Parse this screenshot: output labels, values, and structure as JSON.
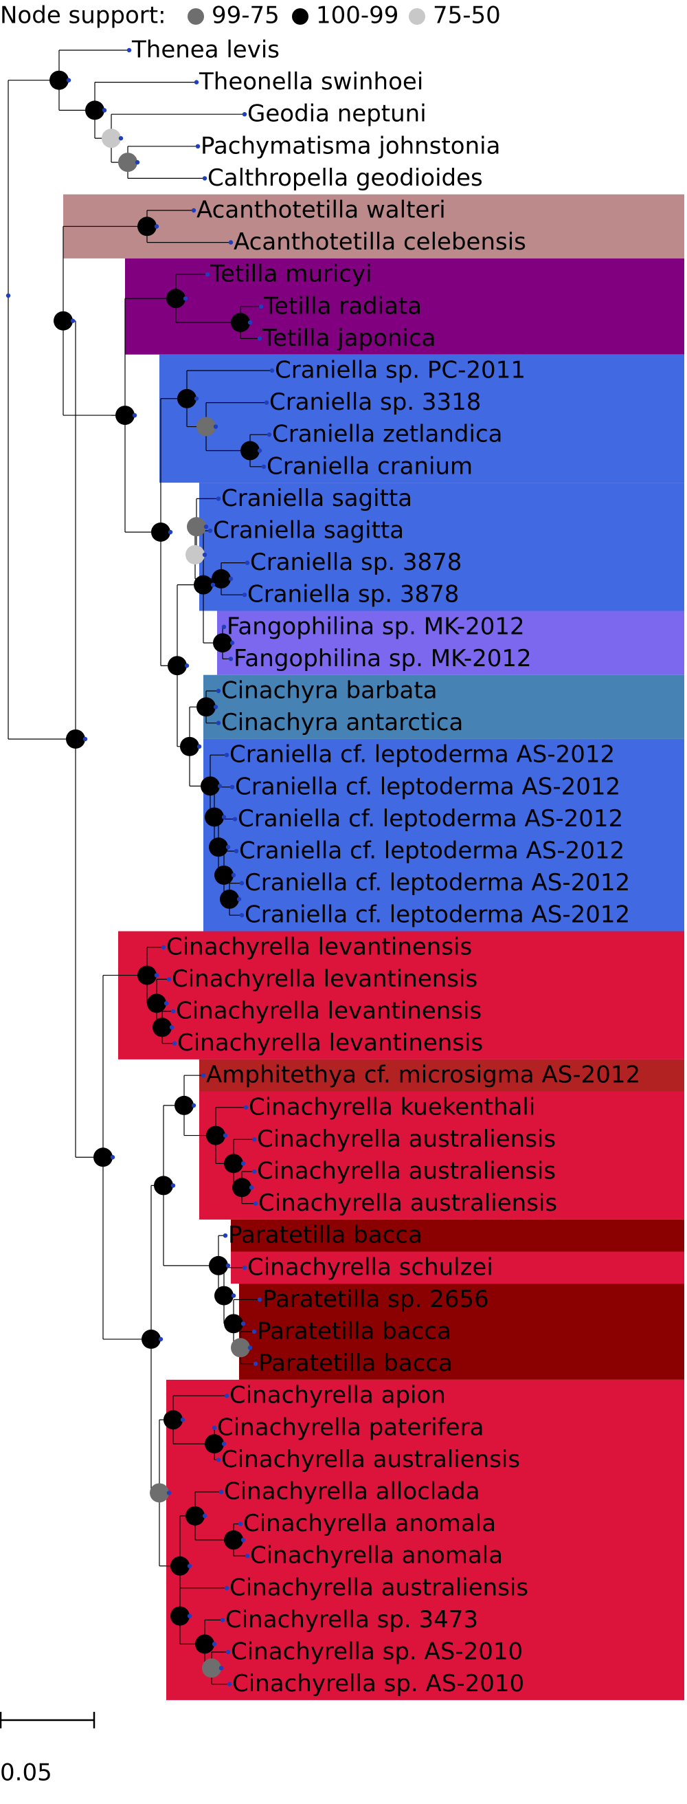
{
  "legend": {
    "title": "Node support:",
    "items": [
      {
        "label": "99-75",
        "color": "#6e6e6e"
      },
      {
        "label": "100-99",
        "color": "#000000"
      },
      {
        "label": "75-50",
        "color": "#c8c8c8"
      }
    ]
  },
  "scale_bar": {
    "label": "0.05"
  },
  "support_colors": {
    "high": "#000000",
    "mid": "#6e6e6e",
    "low": "#c8c8c8"
  },
  "clade_colors": {
    "acanthotetilla": "#bc8a8a",
    "tetilla": "#800080",
    "craniella": "#4169e1",
    "fangophilina": "#7b68ee",
    "cinachyra": "#4682b4",
    "cinachyrella": "#dc143c",
    "amphitethya": "#b22222",
    "paratetilla": "#8b0000"
  },
  "taxa": [
    "Thenea levis",
    "Theonella swinhoei",
    "Geodia neptuni",
    "Pachymatisma johnstonia",
    "Calthropella geodioides",
    "Acanthotetilla walteri",
    "Acanthotetilla celebensis",
    "Tetilla muricyi",
    "Tetilla radiata",
    "Tetilla japonica",
    "Craniella sp. PC-2011",
    "Craniella sp. 3318",
    "Craniella zetlandica",
    "Craniella cranium",
    "Craniella sagitta",
    "Craniella sagitta",
    "Craniella sp. 3878",
    "Craniella sp. 3878",
    "Fangophilina sp. MK-2012",
    "Fangophilina sp. MK-2012",
    "Cinachyra barbata",
    "Cinachyra antarctica",
    "Craniella cf. leptoderma AS-2012",
    "Craniella cf. leptoderma AS-2012",
    "Craniella cf. leptoderma AS-2012",
    "Craniella cf. leptoderma AS-2012",
    "Craniella cf. leptoderma AS-2012",
    "Craniella cf. leptoderma AS-2012",
    "Cinachyrella levantinensis",
    "Cinachyrella levantinensis",
    "Cinachyrella levantinensis",
    "Cinachyrella levantinensis",
    "Amphitethya cf. microsigma AS-2012",
    "Cinachyrella kuekenthali",
    "Cinachyrella australiensis",
    "Cinachyrella australiensis",
    "Cinachyrella australiensis",
    "Paratetilla bacca",
    "Cinachyrella schulzei",
    "Paratetilla sp. 2656",
    "Paratetilla bacca",
    "Paratetilla bacca",
    "Cinachyrella apion",
    "Cinachyrella paterifera",
    "Cinachyrella australiensis",
    "Cinachyrella alloclada",
    "Cinachyrella anomala",
    "Cinachyrella anomala",
    "Cinachyrella australiensis",
    "Cinachyrella sp. 3473",
    "Cinachyrella sp. AS-2010",
    "Cinachyrella sp. AS-2010"
  ]
}
